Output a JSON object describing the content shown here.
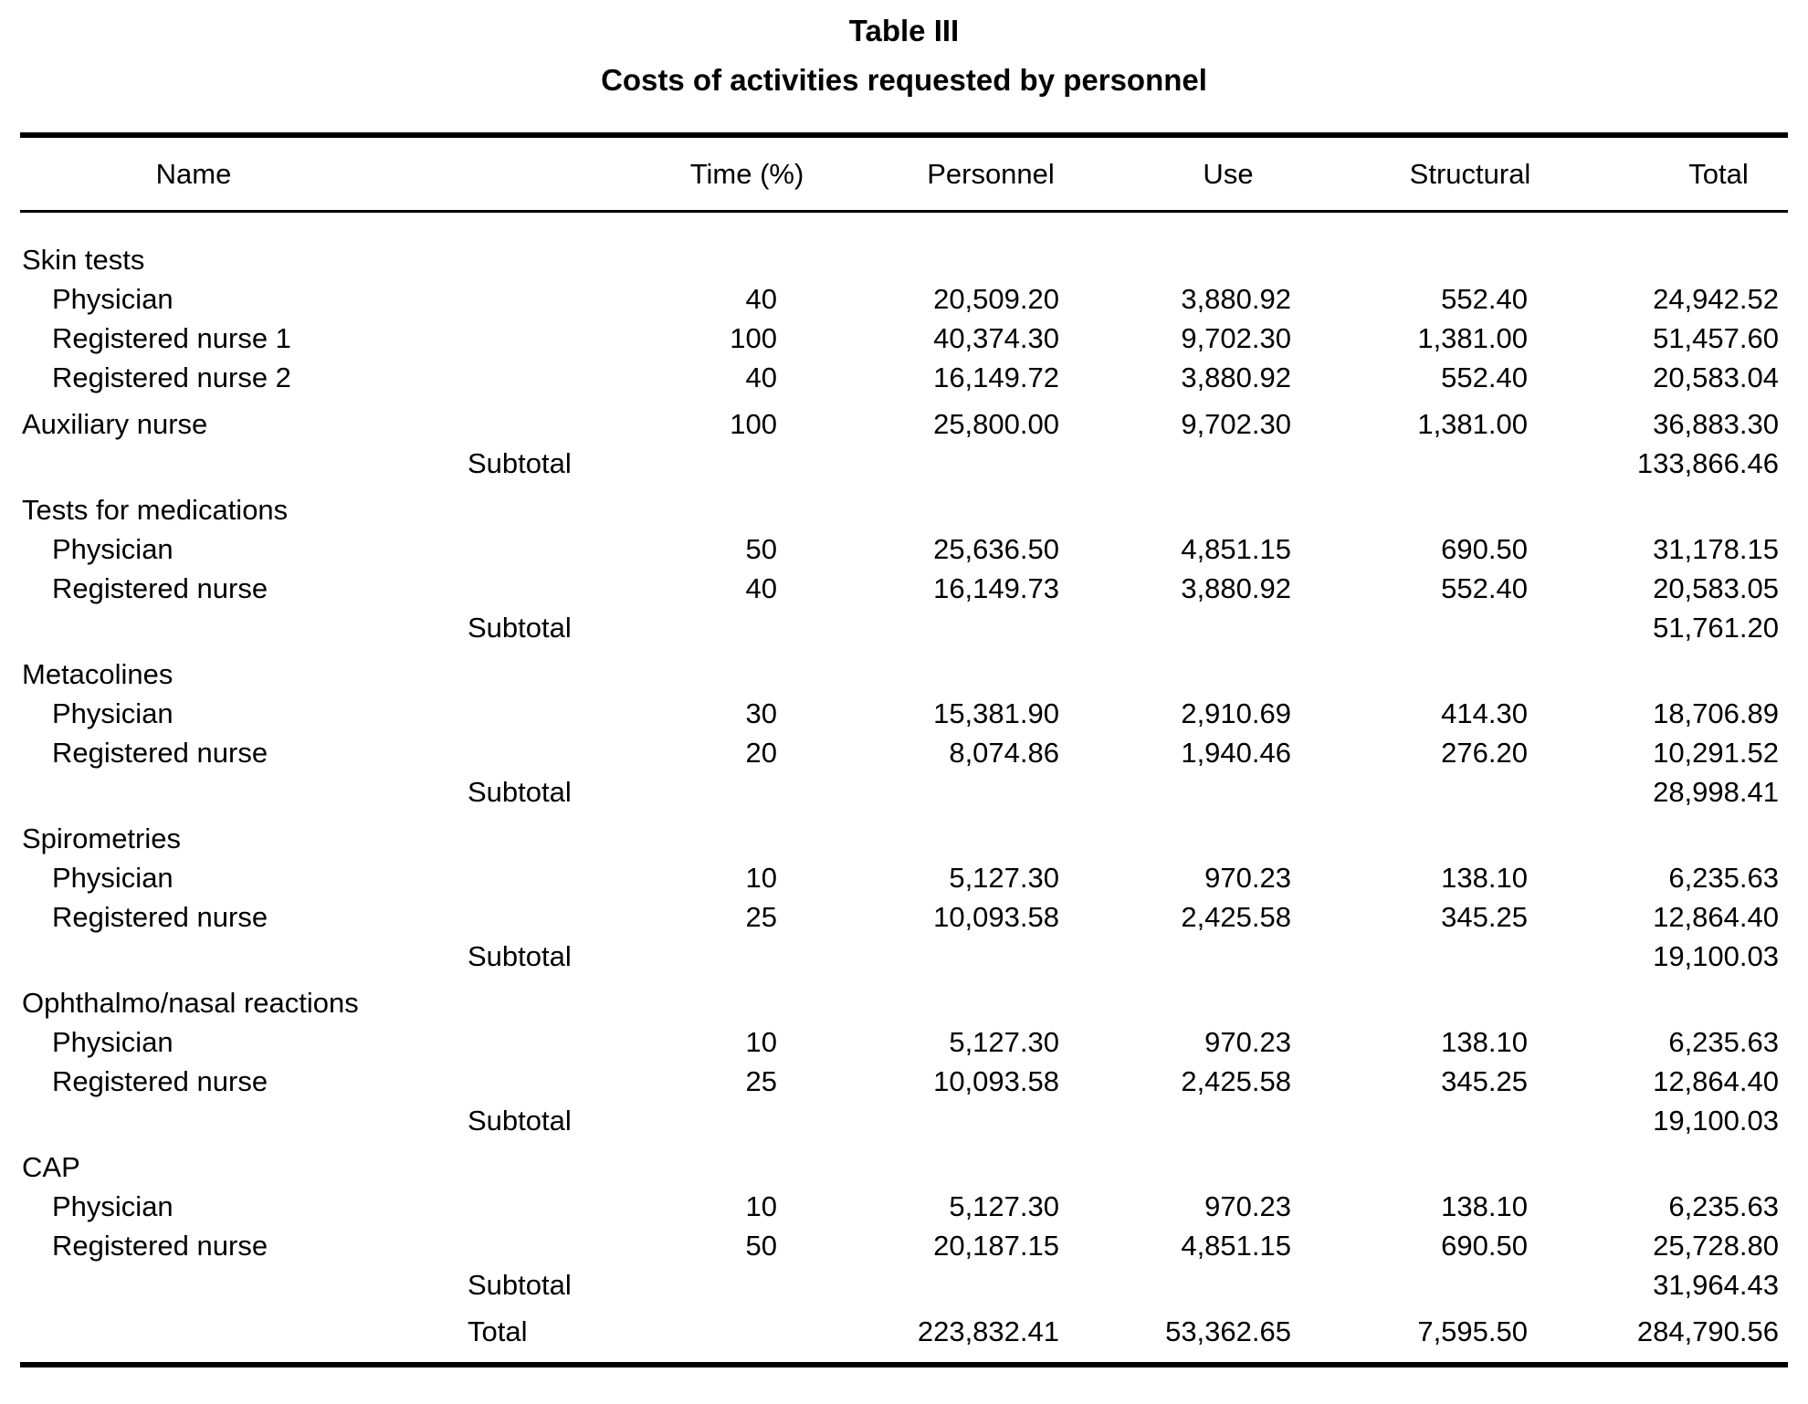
{
  "title": "Table III",
  "subtitle": "Costs of activities requested by personnel",
  "columns": {
    "name": "Name",
    "time": "Time (%)",
    "personnel": "Personnel",
    "use": "Use",
    "structural": "Structural",
    "total": "Total"
  },
  "sections": [
    {
      "header": "Skin tests",
      "rows": [
        {
          "name": "Physician",
          "time": "40",
          "personnel": "20,509.20",
          "use": "3,880.92",
          "structural": "552.40",
          "total": "24,942.52"
        },
        {
          "name": "Registered nurse 1",
          "time": "100",
          "personnel": "40,374.30",
          "use": "9,702.30",
          "structural": "1,381.00",
          "total": "51,457.60"
        },
        {
          "name": "Registered nurse 2",
          "time": "40",
          "personnel": "16,149.72",
          "use": "3,880.92",
          "structural": "552.40",
          "total": "20,583.04"
        },
        {
          "name": "Auxiliary nurse",
          "time": "100",
          "personnel": "25,800.00",
          "use": "9,702.30",
          "structural": "1,381.00",
          "total": "36,883.30"
        }
      ],
      "subtotal_label": "Subtotal",
      "subtotal": "133,866.46"
    },
    {
      "header": "Tests for medications",
      "rows": [
        {
          "name": "Physician",
          "time": "50",
          "personnel": "25,636.50",
          "use": "4,851.15",
          "structural": "690.50",
          "total": "31,178.15"
        },
        {
          "name": "Registered nurse",
          "time": "40",
          "personnel": "16,149.73",
          "use": "3,880.92",
          "structural": "552.40",
          "total": "20,583.05"
        }
      ],
      "subtotal_label": "Subtotal",
      "subtotal": "51,761.20"
    },
    {
      "header": "Metacolines",
      "rows": [
        {
          "name": "Physician",
          "time": "30",
          "personnel": "15,381.90",
          "use": "2,910.69",
          "structural": "414.30",
          "total": "18,706.89"
        },
        {
          "name": "Registered nurse",
          "time": "20",
          "personnel": "8,074.86",
          "use": "1,940.46",
          "structural": "276.20",
          "total": "10,291.52"
        }
      ],
      "subtotal_label": "Subtotal",
      "subtotal": "28,998.41"
    },
    {
      "header": "Spirometries",
      "rows": [
        {
          "name": "Physician",
          "time": "10",
          "personnel": "5,127.30",
          "use": "970.23",
          "structural": "138.10",
          "total": "6,235.63"
        },
        {
          "name": "Registered nurse",
          "time": "25",
          "personnel": "10,093.58",
          "use": "2,425.58",
          "structural": "345.25",
          "total": "12,864.40"
        }
      ],
      "subtotal_label": "Subtotal",
      "subtotal": "19,100.03"
    },
    {
      "header": "Ophthalmo/nasal reactions",
      "rows": [
        {
          "name": "Physician",
          "time": "10",
          "personnel": "5,127.30",
          "use": "970.23",
          "structural": "138.10",
          "total": "6,235.63"
        },
        {
          "name": "Registered nurse",
          "time": "25",
          "personnel": "10,093.58",
          "use": "2,425.58",
          "structural": "345.25",
          "total": "12,864.40"
        }
      ],
      "subtotal_label": "Subtotal",
      "subtotal": "19,100.03"
    },
    {
      "header": "CAP",
      "rows": [
        {
          "name": "Physician",
          "time": "10",
          "personnel": "5,127.30",
          "use": "970.23",
          "structural": "138.10",
          "total": "6,235.63"
        },
        {
          "name": "Registered nurse",
          "time": "50",
          "personnel": "20,187.15",
          "use": "4,851.15",
          "structural": "690.50",
          "total": "25,728.80"
        }
      ],
      "subtotal_label": "Subtotal",
      "subtotal": "31,964.43"
    }
  ],
  "total_row": {
    "label": "Total",
    "personnel": "223,832.41",
    "use": "53,362.65",
    "structural": "7,595.50",
    "total": "284,790.56"
  }
}
